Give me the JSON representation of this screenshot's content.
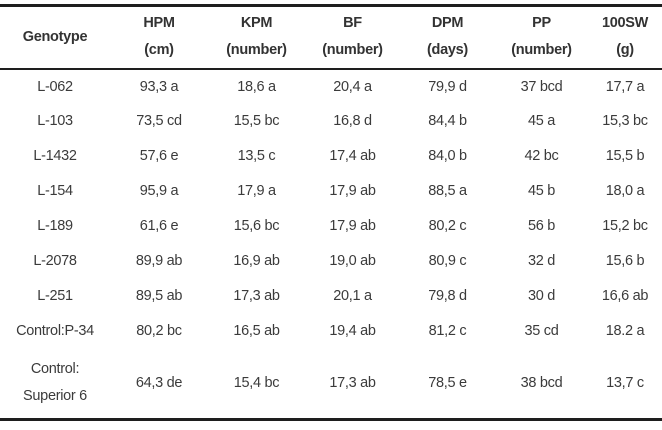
{
  "table": {
    "columns": [
      {
        "name": "Genotype",
        "unit": ""
      },
      {
        "name": "HPM",
        "unit": "(cm)"
      },
      {
        "name": "KPM",
        "unit": "(number)"
      },
      {
        "name": "BF",
        "unit": "(number)"
      },
      {
        "name": "DPM",
        "unit": "(days)"
      },
      {
        "name": "PP",
        "unit": "(number)"
      },
      {
        "name": "100SW",
        "unit": "(g)"
      }
    ],
    "rows": [
      {
        "genotype": "L-062",
        "hpm": "93,3 a",
        "kpm": "18,6 a",
        "bf": "20,4 a",
        "dpm": "79,9 d",
        "pp": "37 bcd",
        "sw100": "17,7 a"
      },
      {
        "genotype": "L-103",
        "hpm": "73,5 cd",
        "kpm": "15,5 bc",
        "bf": "16,8 d",
        "dpm": "84,4 b",
        "pp": "45 a",
        "sw100": "15,3 bc"
      },
      {
        "genotype": "L-1432",
        "hpm": "57,6 e",
        "kpm": "13,5 c",
        "bf": "17,4 ab",
        "dpm": "84,0 b",
        "pp": "42 bc",
        "sw100": "15,5 b"
      },
      {
        "genotype": "L-154",
        "hpm": "95,9 a",
        "kpm": "17,9 a",
        "bf": "17,9 ab",
        "dpm": "88,5 a",
        "pp": "45 b",
        "sw100": "18,0 a"
      },
      {
        "genotype": "L-189",
        "hpm": "61,6 e",
        "kpm": "15,6 bc",
        "bf": "17,9 ab",
        "dpm": "80,2 c",
        "pp": "56 b",
        "sw100": "15,2 bc"
      },
      {
        "genotype": "L-2078",
        "hpm": "89,9 ab",
        "kpm": "16,9 ab",
        "bf": "19,0 ab",
        "dpm": "80,9 c",
        "pp": "32 d",
        "sw100": "15,6 b"
      },
      {
        "genotype": "L-251",
        "hpm": "89,5 ab",
        "kpm": "17,3 ab",
        "bf": "20,1 a",
        "dpm": "79,8 d",
        "pp": "30 d",
        "sw100": "16,6 ab"
      },
      {
        "genotype": "Control:P-34",
        "hpm": "80,2 bc",
        "kpm": "16,5 ab",
        "bf": "19,4 ab",
        "dpm": "81,2 c",
        "pp": "35 cd",
        "sw100": "18.2 a"
      },
      {
        "genotype_lines": [
          "Control:",
          "Superior 6"
        ],
        "hpm": "64,3 de",
        "kpm": "15,4 bc",
        "bf": "17,3 ab",
        "dpm": "78,5 e",
        "pp": "38 bcd",
        "sw100": "13,7 c"
      }
    ]
  },
  "colors": {
    "rule": "#1e1e1e",
    "text": "#3b3b3b",
    "background": "#ffffff"
  }
}
